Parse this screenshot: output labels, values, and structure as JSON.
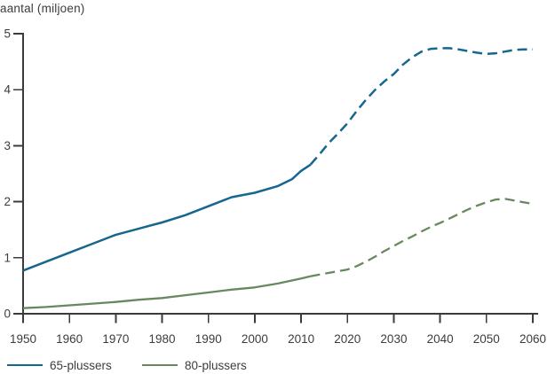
{
  "chart_data": {
    "type": "line",
    "title": "",
    "ylabel": "aantal (miljoen)",
    "xlabel": "",
    "xlim": [
      1950,
      2060
    ],
    "ylim": [
      0,
      5
    ],
    "x_ticks": [
      1950,
      1960,
      1970,
      1980,
      1990,
      2000,
      2010,
      2020,
      2030,
      2040,
      2050,
      2060
    ],
    "y_ticks": [
      0,
      1,
      2,
      3,
      4,
      5
    ],
    "grid": false,
    "legend_position": "bottom-left",
    "line_style_note": "solid = observed (1950-2012), dashed = projection (2012-2060)",
    "colors": {
      "axis": "#3b3b3b",
      "text": "#3c3c3c",
      "background": "#ffffff",
      "series_65": "#16678f",
      "series_80": "#68895f"
    },
    "series": [
      {
        "name": "65-plussers",
        "color": "#16678f",
        "segments": [
          {
            "style": "solid",
            "points": [
              [
                1950,
                0.77
              ],
              [
                1955,
                0.93
              ],
              [
                1960,
                1.09
              ],
              [
                1965,
                1.25
              ],
              [
                1970,
                1.41
              ],
              [
                1975,
                1.52
              ],
              [
                1980,
                1.63
              ],
              [
                1985,
                1.76
              ],
              [
                1990,
                1.92
              ],
              [
                1995,
                2.08
              ],
              [
                2000,
                2.16
              ],
              [
                2005,
                2.28
              ],
              [
                2008,
                2.4
              ],
              [
                2010,
                2.55
              ],
              [
                2012,
                2.66
              ]
            ]
          },
          {
            "style": "dashed",
            "points": [
              [
                2012,
                2.66
              ],
              [
                2014,
                2.85
              ],
              [
                2016,
                3.05
              ],
              [
                2018,
                3.22
              ],
              [
                2020,
                3.4
              ],
              [
                2022,
                3.62
              ],
              [
                2024,
                3.82
              ],
              [
                2026,
                4.0
              ],
              [
                2028,
                4.15
              ],
              [
                2030,
                4.28
              ],
              [
                2032,
                4.45
              ],
              [
                2034,
                4.58
              ],
              [
                2036,
                4.68
              ],
              [
                2038,
                4.73
              ],
              [
                2040,
                4.74
              ],
              [
                2042,
                4.74
              ],
              [
                2044,
                4.72
              ],
              [
                2046,
                4.69
              ],
              [
                2048,
                4.66
              ],
              [
                2050,
                4.64
              ],
              [
                2052,
                4.65
              ],
              [
                2054,
                4.68
              ],
              [
                2056,
                4.71
              ],
              [
                2058,
                4.72
              ],
              [
                2060,
                4.72
              ]
            ]
          }
        ]
      },
      {
        "name": "80-plussers",
        "color": "#68895f",
        "segments": [
          {
            "style": "solid",
            "points": [
              [
                1950,
                0.1
              ],
              [
                1955,
                0.12
              ],
              [
                1960,
                0.15
              ],
              [
                1965,
                0.18
              ],
              [
                1970,
                0.21
              ],
              [
                1975,
                0.25
              ],
              [
                1980,
                0.28
              ],
              [
                1985,
                0.33
              ],
              [
                1990,
                0.38
              ],
              [
                1995,
                0.43
              ],
              [
                2000,
                0.47
              ],
              [
                2005,
                0.54
              ],
              [
                2010,
                0.63
              ],
              [
                2012,
                0.67
              ]
            ]
          },
          {
            "style": "dashed",
            "points": [
              [
                2012,
                0.67
              ],
              [
                2014,
                0.7
              ],
              [
                2016,
                0.73
              ],
              [
                2018,
                0.76
              ],
              [
                2020,
                0.79
              ],
              [
                2022,
                0.85
              ],
              [
                2024,
                0.93
              ],
              [
                2026,
                1.02
              ],
              [
                2028,
                1.12
              ],
              [
                2030,
                1.21
              ],
              [
                2032,
                1.3
              ],
              [
                2034,
                1.38
              ],
              [
                2036,
                1.47
              ],
              [
                2038,
                1.55
              ],
              [
                2040,
                1.62
              ],
              [
                2042,
                1.7
              ],
              [
                2044,
                1.78
              ],
              [
                2046,
                1.86
              ],
              [
                2048,
                1.93
              ],
              [
                2050,
                1.99
              ],
              [
                2052,
                2.04
              ],
              [
                2054,
                2.05
              ],
              [
                2056,
                2.02
              ],
              [
                2058,
                1.99
              ],
              [
                2060,
                1.96
              ]
            ]
          }
        ]
      }
    ]
  }
}
